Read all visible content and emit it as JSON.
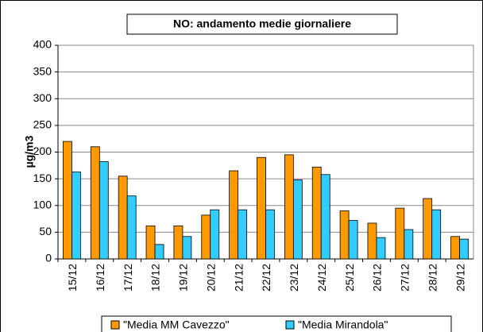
{
  "chart_data": {
    "type": "bar",
    "title": "NO: andamento medie  giornaliere",
    "y_label": "µg/m3",
    "categories": [
      "15/12",
      "16/12",
      "17/12",
      "18/12",
      "19/12",
      "20/12",
      "21/12",
      "22/12",
      "23/12",
      "24/12",
      "25/12",
      "26/12",
      "27/12",
      "28/12",
      "29/12"
    ],
    "series": [
      {
        "name": "\"Media MM Cavezzo\"",
        "color": "#FF9900",
        "values": [
          220,
          210,
          155,
          62,
          62,
          82,
          165,
          190,
          195,
          172,
          90,
          67,
          95,
          113,
          42
        ]
      },
      {
        "name": "\"Media Mirandola\"",
        "color": "#33CCFF",
        "values": [
          163,
          182,
          118,
          27,
          42,
          92,
          92,
          92,
          148,
          158,
          72,
          40,
          55,
          92,
          37
        ]
      }
    ],
    "ylim": [
      0,
      400
    ],
    "yticks": [
      0,
      50,
      100,
      150,
      200,
      250,
      300,
      350,
      400
    ],
    "grid": true,
    "legend": "bottom"
  }
}
